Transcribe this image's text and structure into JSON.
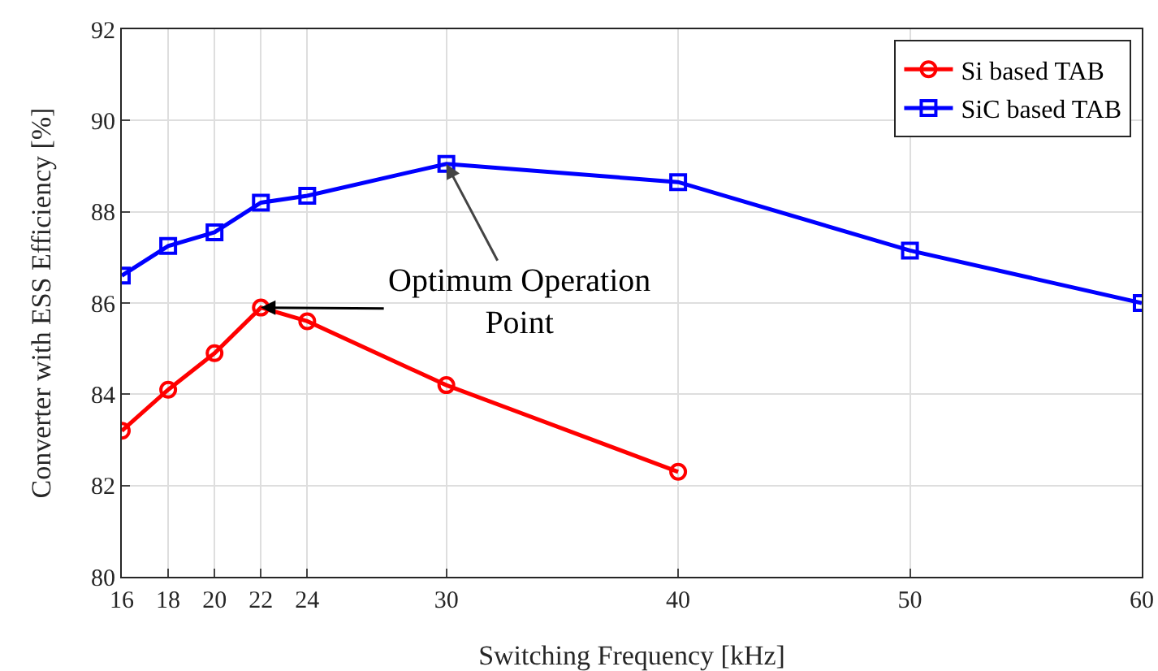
{
  "chart_data": {
    "type": "line",
    "xlabel": "Switching Frequency [kHz]",
    "ylabel": "Converter with ESS Efficiency [%]",
    "xlim": [
      16,
      60
    ],
    "xticks": [
      16,
      18,
      20,
      22,
      24,
      30,
      40,
      50,
      60
    ],
    "ylim": [
      80,
      92
    ],
    "yticks": [
      80,
      82,
      84,
      86,
      88,
      90,
      92
    ],
    "grid": true,
    "legend": "top right",
    "line_style": "solid",
    "series": [
      {
        "name": "Si based TAB",
        "color": "#ff0000",
        "marker": "circle",
        "x": [
          16,
          18,
          20,
          22,
          24,
          30,
          40
        ],
        "values": [
          83.2,
          84.1,
          84.9,
          85.9,
          85.6,
          84.2,
          82.3
        ]
      },
      {
        "name": "SiC based TAB",
        "color": "#0000ff",
        "marker": "square",
        "x": [
          16,
          18,
          20,
          22,
          24,
          30,
          40,
          50,
          60
        ],
        "values": [
          86.6,
          87.25,
          87.55,
          88.2,
          88.35,
          89.05,
          88.65,
          87.15,
          86.0
        ]
      }
    ],
    "annotations": [
      {
        "text": "Optimum Operation\nPoint",
        "x": 30,
        "y": 89.05
      }
    ]
  }
}
